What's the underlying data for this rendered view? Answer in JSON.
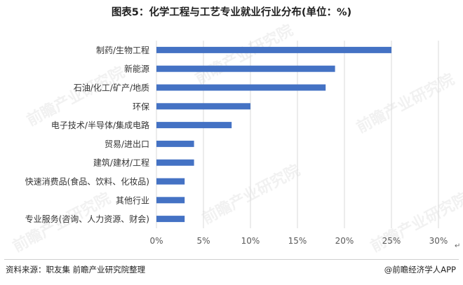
{
  "title": "图表5：化学工程与工艺专业就业行业分布(单位：%)",
  "source": "资料来源：职友集 前瞻产业研究院整理",
  "credit": "@前瞻经济学人APP",
  "watermark": "前瞻产业研究院",
  "corner_mark": "↵",
  "colors": {
    "bar": "#4472C4",
    "grid": "#d9d9d9",
    "axis_text": "#595959",
    "label_text": "#333333"
  },
  "chart_data": {
    "type": "bar",
    "orientation": "horizontal",
    "categories": [
      "制药/生物工程",
      "新能源",
      "石油/化工/矿产/地质",
      "环保",
      "电子技术/半导体/集成电路",
      "贸易/进出口",
      "建筑/建材/工程",
      "快速消费品(食品、饮料、化妆品)",
      "其他行业",
      "专业服务(咨询、人力资源、财会)"
    ],
    "values": [
      25,
      19,
      18,
      10,
      8,
      4,
      4,
      3,
      3,
      3
    ],
    "xlim": [
      0,
      30
    ],
    "xticks": [
      "0%",
      "5%",
      "10%",
      "15%",
      "20%",
      "25%",
      "30%"
    ],
    "xlabel": "",
    "ylabel": "",
    "grid": true,
    "legend": "none"
  }
}
